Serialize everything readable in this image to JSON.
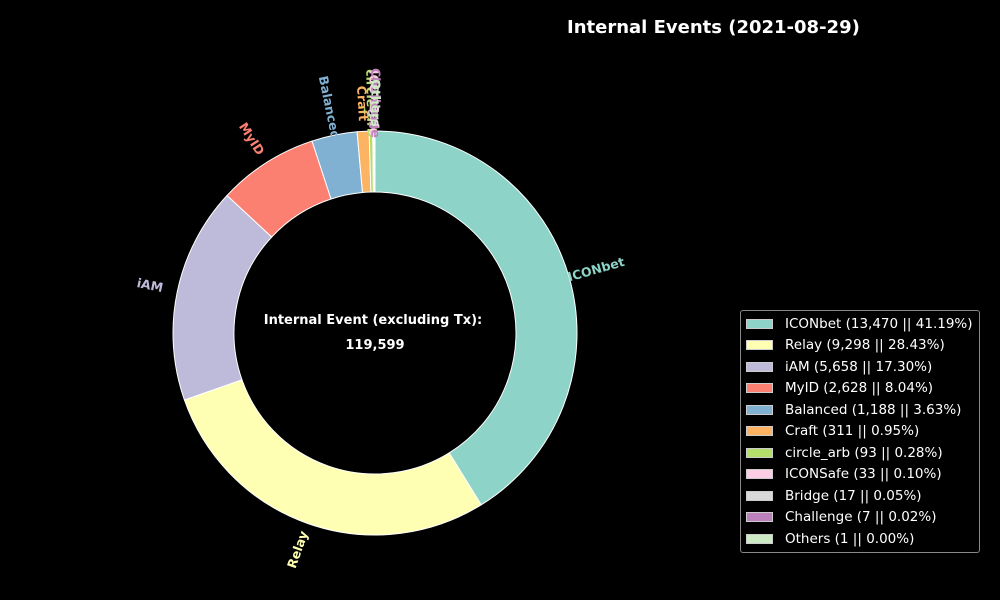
{
  "chart_data": {
    "type": "pie",
    "title": "Internal Events (2021-08-29)",
    "center_label": "Internal Event (excluding Tx):",
    "center_value": "119,599",
    "legend_position": "right",
    "slices": [
      {
        "label": "ICONbet",
        "value": 13470,
        "legend": "ICONbet (13,470 || 41.19%)",
        "color": "#8dd3c7"
      },
      {
        "label": "Relay",
        "value": 9298,
        "legend": "Relay (9,298 || 28.43%)",
        "color": "#ffffb3"
      },
      {
        "label": "iAM",
        "value": 5658,
        "legend": "iAM  (5,658 || 17.30%)",
        "color": "#bebada"
      },
      {
        "label": "MyID",
        "value": 2628,
        "legend": "MyID (2,628 || 8.04%)",
        "color": "#fb8072"
      },
      {
        "label": "Balanced",
        "value": 1188,
        "legend": "Balanced (1,188 || 3.63%)",
        "color": "#80b1d3"
      },
      {
        "label": "Craft",
        "value": 311,
        "legend": "Craft (311 || 0.95%)",
        "color": "#fdb462"
      },
      {
        "label": "circle_arb",
        "value": 93,
        "legend": "circle_arb (93 || 0.28%)",
        "color": "#b3de69"
      },
      {
        "label": "ICONSafe",
        "value": 33,
        "legend": "ICONSafe (33 || 0.10%)",
        "color": "#fccde5"
      },
      {
        "label": "Bridge",
        "value": 17,
        "legend": "Bridge (17 || 0.05%)",
        "color": "#d9d9d9"
      },
      {
        "label": "Challenge",
        "value": 7,
        "legend": "Challenge (7 || 0.02%)",
        "color": "#bc80bd"
      },
      {
        "label": "Others",
        "value": 1,
        "legend": "Others (1 || 0.00%)",
        "color": "#ccebc5"
      }
    ]
  }
}
